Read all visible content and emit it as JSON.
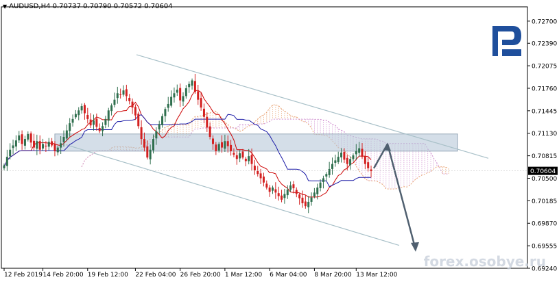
{
  "header": {
    "symbol": "AUDUSD,H4",
    "ohlc": "0.70737 0.70790 0.70572 0.70604"
  },
  "watermark": "forex.osobye.ru",
  "logo": {
    "name": "R-logo",
    "color": "#1f4f9c"
  },
  "colors": {
    "bull": "#2f6f4e",
    "bear": "#d32020",
    "tenkan": "#cc0000",
    "kijun": "#1a1aa6",
    "spanA": "#e8a070",
    "spanB": "#d090d0",
    "channel": "#a8c0c8",
    "zone_fill": "#b8c8d8",
    "arrow": "#506070"
  },
  "chart_data": {
    "type": "candlestick",
    "title": "AUDUSD,H4",
    "ylim": [
      0.6924,
      0.729
    ],
    "y_ticks": [
      "0.72700",
      "0.72390",
      "0.72075",
      "0.71760",
      "0.71445",
      "0.71130",
      "0.70815",
      "0.70500",
      "0.70185",
      "0.69870",
      "0.69555",
      "0.69240"
    ],
    "x_ticks": [
      "12 Feb 2019",
      "14 Feb 20:00",
      "19 Feb 12:00",
      "22 Feb 04:00",
      "26 Feb 20:00",
      "1 Mar 12:00",
      "6 Mar 04:00",
      "8 Mar 20:00",
      "13 Mar 12:00"
    ],
    "current_price": "0.70604",
    "closes": [
      0.7068,
      0.708,
      0.709,
      0.7096,
      0.7103,
      0.711,
      0.7098,
      0.7105,
      0.7112,
      0.71,
      0.7093,
      0.7102,
      0.709,
      0.7098,
      0.7095,
      0.7101,
      0.7096,
      0.7088,
      0.7093,
      0.7099,
      0.7108,
      0.7117,
      0.7127,
      0.7133,
      0.714,
      0.7145,
      0.7151,
      0.7141,
      0.7133,
      0.7124,
      0.7131,
      0.7122,
      0.7116,
      0.7123,
      0.7133,
      0.7145,
      0.7152,
      0.716,
      0.7169,
      0.7167,
      0.7173,
      0.7165,
      0.7158,
      0.7149,
      0.7138,
      0.7123,
      0.7105,
      0.7093,
      0.7079,
      0.709,
      0.7105,
      0.7116,
      0.7126,
      0.7137,
      0.7147,
      0.7154,
      0.7164,
      0.7169,
      0.7174,
      0.7159,
      0.7165,
      0.7176,
      0.7182,
      0.7187,
      0.7171,
      0.716,
      0.7149,
      0.7136,
      0.7121,
      0.7108,
      0.7098,
      0.7088,
      0.7098,
      0.7093,
      0.7102,
      0.7095,
      0.7088,
      0.7083,
      0.7077,
      0.7085,
      0.7079,
      0.7074,
      0.7081,
      0.707,
      0.7061,
      0.7056,
      0.705,
      0.7044,
      0.7037,
      0.7031,
      0.7037,
      0.703,
      0.7025,
      0.702,
      0.7028,
      0.7034,
      0.704,
      0.7036,
      0.7028,
      0.7022,
      0.7015,
      0.7011,
      0.7017,
      0.7023,
      0.703,
      0.7037,
      0.7044,
      0.705,
      0.7056,
      0.7063,
      0.707,
      0.7075,
      0.708,
      0.7086,
      0.7076,
      0.707,
      0.7077,
      0.7082,
      0.7088,
      0.7092,
      0.708,
      0.707,
      0.7064,
      0.706
    ],
    "annotations": {
      "resistance_zone": [
        0.7088,
        0.7112
      ],
      "channel_upper": [
        [
          3,
          0.7223
        ],
        [
          122,
          0.7078
        ]
      ],
      "channel_lower": [
        [
          3,
          0.7097
        ],
        [
          118,
          0.6956
        ]
      ],
      "forecast_path": [
        0.7064,
        0.7098,
        0.695
      ]
    }
  }
}
